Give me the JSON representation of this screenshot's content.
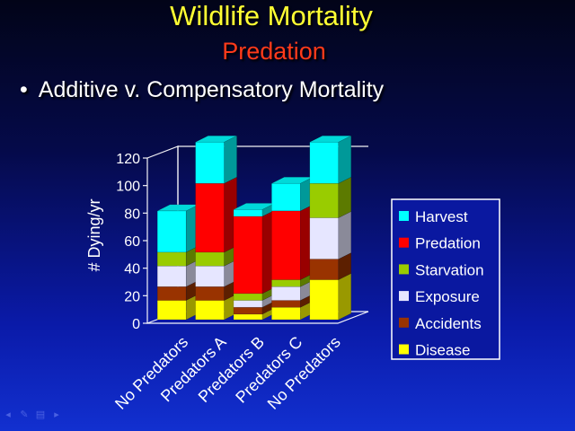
{
  "slide": {
    "title": "Wildlife Mortality",
    "subtitle": "Predation",
    "bullet": "Additive v. Compensatory Mortality",
    "bullet_glyph": "•"
  },
  "chart_data": {
    "type": "bar",
    "stacked": true,
    "style": "3d",
    "categories": [
      "No Predators",
      "Predators A",
      "Predators B",
      "Predators C",
      "No Predators"
    ],
    "series": [
      {
        "name": "Disease",
        "color": "#ffff00",
        "values": [
          14,
          14,
          4,
          9,
          29
        ]
      },
      {
        "name": "Accidents",
        "color": "#993300",
        "values": [
          10,
          10,
          5,
          5,
          15
        ]
      },
      {
        "name": "Exposure",
        "color": "#e6e6ff",
        "values": [
          15,
          15,
          5,
          10,
          30
        ]
      },
      {
        "name": "Starvation",
        "color": "#99cc00",
        "values": [
          10,
          10,
          5,
          5,
          25
        ]
      },
      {
        "name": "Predation",
        "color": "#ff0000",
        "values": [
          0,
          50,
          56,
          50,
          0
        ]
      },
      {
        "name": "Harvest",
        "color": "#00ffff",
        "values": [
          30,
          30,
          5,
          20,
          30
        ]
      }
    ],
    "ylabel": "# Dying/yr",
    "xlabel": "",
    "ylim": [
      0,
      120
    ],
    "yticks": [
      "0",
      "20",
      "40",
      "60",
      "80",
      "100",
      "120"
    ],
    "legend_position": "right",
    "grid": false
  }
}
